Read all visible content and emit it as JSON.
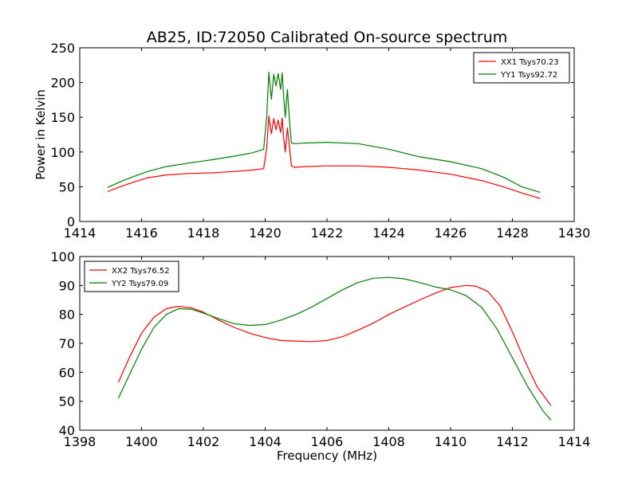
{
  "figure": {
    "title": "AB25, ID:72050 Calibrated On-source spectrum",
    "background": "#ffffff"
  },
  "chart_data": [
    {
      "type": "line",
      "title": "AB25, ID:72050 Calibrated On-source spectrum",
      "xlabel": "",
      "ylabel": "Power in Kelvin",
      "xlim": [
        1414,
        1430
      ],
      "ylim": [
        0,
        250
      ],
      "xticks": [
        1414,
        1416,
        1418,
        1420,
        1422,
        1424,
        1426,
        1428,
        1430
      ],
      "yticks": [
        0,
        50,
        100,
        150,
        200,
        250
      ],
      "grid": false,
      "legend_position": "top-right",
      "series": [
        {
          "name": "XX1 Tsys70.23",
          "color": "#ff0000",
          "x": [
            1414.9,
            1415.3,
            1415.7,
            1416.2,
            1416.8,
            1417.5,
            1418.3,
            1419.0,
            1419.6,
            1419.95,
            1420.05,
            1420.12,
            1420.2,
            1420.28,
            1420.35,
            1420.42,
            1420.5,
            1420.55,
            1420.6,
            1420.65,
            1420.72,
            1420.78,
            1420.85,
            1420.95,
            1421.3,
            1422.0,
            1423.0,
            1424.0,
            1425.0,
            1426.0,
            1427.0,
            1427.7,
            1428.3,
            1428.9
          ],
          "y": [
            43,
            50,
            56,
            63,
            67,
            69,
            70,
            72,
            74,
            76,
            105,
            152,
            126,
            148,
            132,
            146,
            128,
            149,
            120,
            100,
            135,
            110,
            80,
            78,
            79,
            80,
            80,
            78,
            74,
            68,
            59,
            50,
            41,
            33
          ]
        },
        {
          "name": "YY1 Tsys92.72",
          "color": "#008000",
          "x": [
            1414.9,
            1415.3,
            1415.7,
            1416.2,
            1416.8,
            1417.5,
            1418.3,
            1419.0,
            1419.6,
            1419.95,
            1420.05,
            1420.12,
            1420.2,
            1420.28,
            1420.35,
            1420.42,
            1420.5,
            1420.55,
            1420.6,
            1420.65,
            1420.72,
            1420.78,
            1420.85,
            1420.95,
            1421.3,
            1422.0,
            1423.0,
            1424.0,
            1425.0,
            1426.0,
            1427.0,
            1427.7,
            1428.3,
            1428.9
          ],
          "y": [
            49,
            57,
            64,
            72,
            79,
            84,
            89,
            94,
            99,
            104,
            150,
            215,
            176,
            212,
            195,
            213,
            190,
            214,
            180,
            150,
            190,
            150,
            113,
            112,
            113,
            114,
            112,
            104,
            93,
            86,
            76,
            64,
            50,
            42
          ]
        }
      ]
    },
    {
      "type": "line",
      "title": "",
      "xlabel": "Frequency (MHz)",
      "ylabel": "",
      "xlim": [
        1398,
        1414
      ],
      "ylim": [
        40,
        100
      ],
      "xticks": [
        1398,
        1400,
        1402,
        1404,
        1406,
        1408,
        1410,
        1412,
        1414
      ],
      "yticks": [
        40,
        50,
        60,
        70,
        80,
        90,
        100
      ],
      "grid": false,
      "legend_position": "top-left",
      "series": [
        {
          "name": "XX2 Tsys76.52",
          "color": "#ff0000",
          "x": [
            1399.25,
            1399.6,
            1400.0,
            1400.4,
            1400.8,
            1401.2,
            1401.6,
            1402.0,
            1402.5,
            1403.0,
            1403.5,
            1404.0,
            1404.5,
            1405.0,
            1405.5,
            1406.0,
            1406.5,
            1407.0,
            1407.5,
            1408.0,
            1408.5,
            1409.0,
            1409.5,
            1410.0,
            1410.5,
            1410.8,
            1411.2,
            1411.6,
            1412.0,
            1412.4,
            1412.8,
            1413.25
          ],
          "y": [
            56.5,
            65,
            73.5,
            79,
            82,
            82.8,
            82.3,
            80.8,
            78,
            75.5,
            73.5,
            72,
            71,
            70.8,
            70.6,
            71,
            72.3,
            74.5,
            77,
            80,
            82.5,
            85,
            87.3,
            89.3,
            90,
            89.8,
            88,
            83,
            74,
            64,
            55,
            48.5
          ]
        },
        {
          "name": "YY2 Tsys79.09",
          "color": "#008000",
          "x": [
            1399.25,
            1399.6,
            1400.0,
            1400.4,
            1400.8,
            1401.2,
            1401.6,
            1402.0,
            1402.5,
            1403.0,
            1403.5,
            1404.0,
            1404.5,
            1405.0,
            1405.5,
            1406.0,
            1406.5,
            1407.0,
            1407.5,
            1408.0,
            1408.5,
            1409.0,
            1409.5,
            1410.0,
            1410.5,
            1411.0,
            1411.5,
            1412.0,
            1412.5,
            1413.0,
            1413.25
          ],
          "y": [
            51,
            59,
            68,
            75.5,
            80,
            82,
            81.8,
            80.5,
            78.5,
            76.8,
            76.2,
            76.5,
            78,
            80,
            82.5,
            85.5,
            88.5,
            91,
            92.5,
            92.8,
            92.3,
            91,
            89.5,
            88.5,
            86.5,
            82.5,
            75,
            65,
            55,
            46.5,
            43.5
          ]
        }
      ]
    }
  ]
}
